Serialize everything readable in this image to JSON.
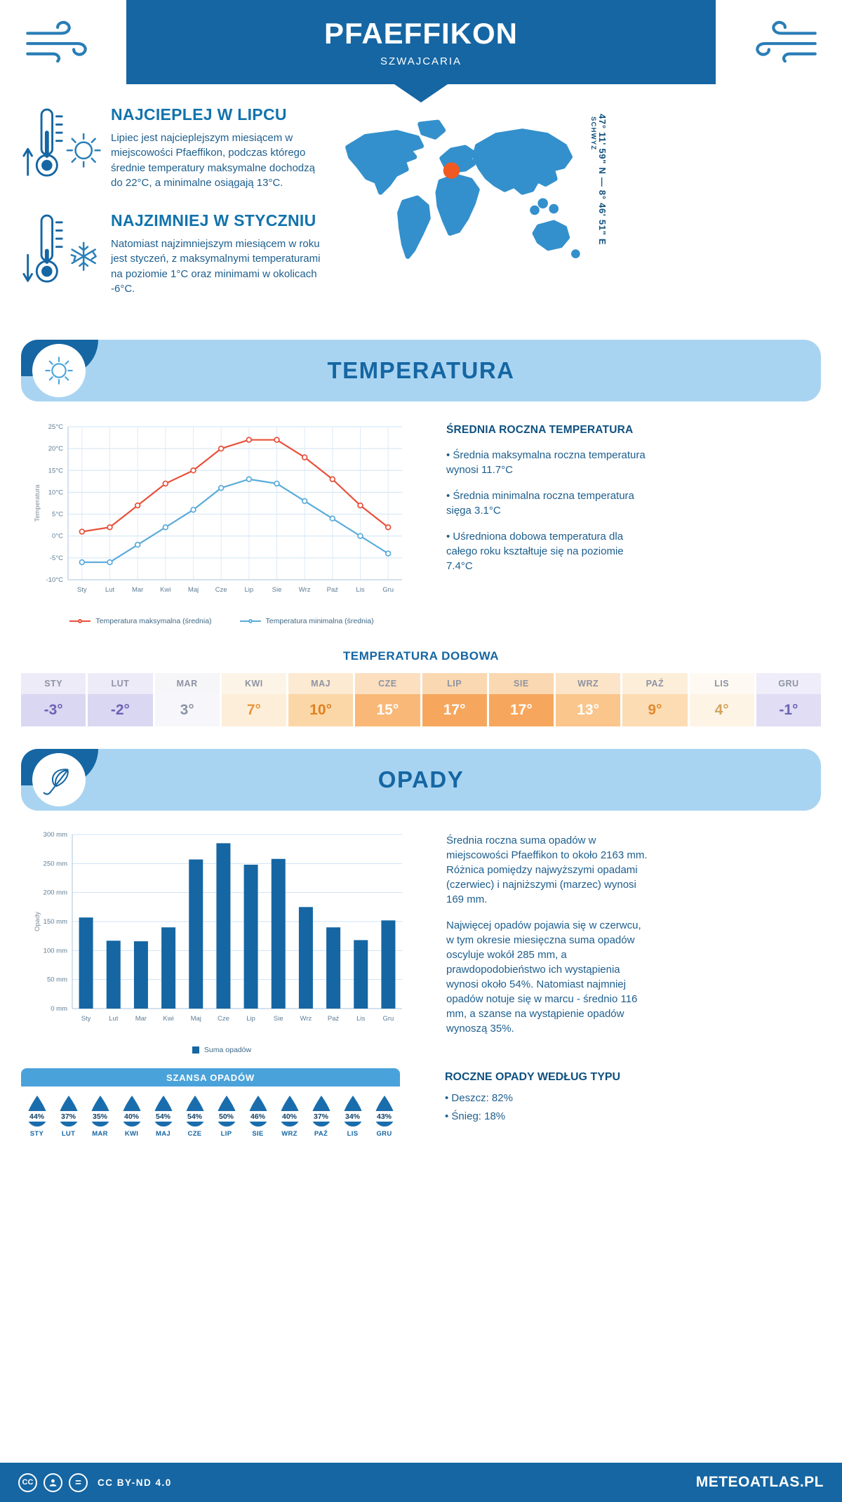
{
  "meta": {
    "title": "PFAEFFIKON",
    "subtitle": "SZWAJCARIA",
    "region": "SCHWYZ",
    "coordinates": "47° 11' 59\" N — 8° 46' 51\" E"
  },
  "intro": {
    "warm": {
      "title": "NAJCIEPLEJ W LIPCU",
      "text": "Lipiec jest najcieplejszym miesiącem w miejscowości Pfaeffikon, podczas którego średnie temperatury maksymalne dochodzą do 22°C, a minimalne osiągają 13°C."
    },
    "cold": {
      "title": "NAJZIMNIEJ W STYCZNIU",
      "text": "Natomiast najzimniejszym miesiącem w roku jest styczeń, z maksymalnymi temperaturami na poziomie 1°C oraz minimami w okolicach -6°C."
    }
  },
  "temperature": {
    "section_title": "TEMPERATURA",
    "summary_title": "ŚREDNIA ROCZNA TEMPERATURA",
    "bullets": [
      "Średnia maksymalna roczna temperatura wynosi 11.7°C",
      "Średnia minimalna roczna temperatura sięga 3.1°C",
      "Uśredniona dobowa temperatura dla całego roku kształtuje się na poziomie 7.4°C"
    ],
    "daily_title": "TEMPERATURA DOBOWA"
  },
  "chart_data": [
    {
      "type": "line",
      "title": "Średnie temperatury miesięczne",
      "ylabel": "Temperatura",
      "categories": [
        "Sty",
        "Lut",
        "Mar",
        "Kwi",
        "Maj",
        "Cze",
        "Lip",
        "Sie",
        "Wrz",
        "Paź",
        "Lis",
        "Gru"
      ],
      "ylim": [
        -10,
        25
      ],
      "ytick_step": 5,
      "ytick_suffix": "°C",
      "grid": true,
      "legend_position": "bottom",
      "series": [
        {
          "name": "Temperatura maksymalna (średnia)",
          "color": "#e8503a",
          "values": [
            1,
            2,
            7,
            12,
            15,
            20,
            22,
            22,
            18,
            13,
            7,
            2
          ]
        },
        {
          "name": "Temperatura minimalna (średnia)",
          "color": "#5aabdb",
          "values": [
            -6,
            -6,
            -2,
            2,
            6,
            11,
            13,
            12,
            8,
            4,
            0,
            -4
          ]
        }
      ]
    },
    {
      "type": "bar",
      "title": "Suma opadów miesięczna",
      "ylabel": "Opady",
      "categories": [
        "Sty",
        "Lut",
        "Mar",
        "Kwi",
        "Maj",
        "Cze",
        "Lip",
        "Sie",
        "Wrz",
        "Paź",
        "Lis",
        "Gru"
      ],
      "ylim": [
        0,
        300
      ],
      "ytick_step": 50,
      "ytick_suffix": " mm",
      "grid": true,
      "legend_position": "bottom",
      "series": [
        {
          "name": "Suma opadów",
          "color": "#1566a3",
          "values": [
            157,
            117,
            116,
            140,
            257,
            285,
            248,
            258,
            175,
            140,
            118,
            152
          ]
        }
      ]
    }
  ],
  "daily": {
    "months": [
      "STY",
      "LUT",
      "MAR",
      "KWI",
      "MAJ",
      "CZE",
      "LIP",
      "SIE",
      "WRZ",
      "PAŹ",
      "LIS",
      "GRU"
    ],
    "values": [
      "-3°",
      "-2°",
      "3°",
      "7°",
      "10°",
      "15°",
      "17°",
      "17°",
      "13°",
      "9°",
      "4°",
      "-1°"
    ],
    "head_bg": [
      "#edebf8",
      "#edebf8",
      "#f6f6f9",
      "#fdf4e8",
      "#fcead2",
      "#fbdfbf",
      "#fad8b1",
      "#fad8b1",
      "#fce4c8",
      "#fdeeda",
      "#fefaf3",
      "#efedf9"
    ],
    "cell_bg": [
      "#dad7f2",
      "#dad7f2",
      "#f7f7fb",
      "#fdeeda",
      "#fbd7a8",
      "#f9b877",
      "#f7a75d",
      "#f7a75d",
      "#fac68c",
      "#fcdcb2",
      "#fef4e6",
      "#e0ddf4"
    ],
    "cell_fg": [
      "#6a64b5",
      "#6a64b5",
      "#8c93a4",
      "#e8963d",
      "#e0801f",
      "#ffffff",
      "#ffffff",
      "#ffffff",
      "#ffffff",
      "#e28a31",
      "#d3a35f",
      "#6a64b5"
    ]
  },
  "precipitation": {
    "section_title": "OPADY",
    "para1": "Średnia roczna suma opadów w miejscowości Pfaeffikon to około 2163 mm. Różnica pomiędzy najwyższymi opadami (czerwiec) i najniższymi (marzec) wynosi 169 mm.",
    "para2": "Najwięcej opadów pojawia się w czerwcu, w tym okresie miesięczna suma opadów oscyluje wokół 285 mm, a prawdopodobieństwo ich wystąpienia wynosi około 54%. Natomiast najmniej opadów notuje się w marcu - średnio 116 mm, a szanse na wystąpienie opadów wynoszą 35%.",
    "chance_title": "SZANSA OPADÓW",
    "chance": [
      {
        "month": "STY",
        "value": "44%"
      },
      {
        "month": "LUT",
        "value": "37%"
      },
      {
        "month": "MAR",
        "value": "35%"
      },
      {
        "month": "KWI",
        "value": "40%"
      },
      {
        "month": "MAJ",
        "value": "54%"
      },
      {
        "month": "CZE",
        "value": "54%"
      },
      {
        "month": "LIP",
        "value": "50%"
      },
      {
        "month": "SIE",
        "value": "46%"
      },
      {
        "month": "WRZ",
        "value": "40%"
      },
      {
        "month": "PAŹ",
        "value": "37%"
      },
      {
        "month": "LIS",
        "value": "34%"
      },
      {
        "month": "GRU",
        "value": "43%"
      }
    ],
    "type_title": "ROCZNE OPADY WEDŁUG TYPU",
    "type_bullets": [
      "Deszcz: 82%",
      "Śnieg: 18%"
    ]
  },
  "footer": {
    "license": "CC BY-ND 4.0",
    "brand": "METEOATLAS.PL"
  },
  "colors": {
    "brand_blue": "#1566a3",
    "band_light_blue": "#a9d4f1",
    "chance_bar_blue": "#4aa2da",
    "max_line_red": "#e8503a",
    "min_line_blue": "#5aabdb",
    "map_blue": "#3390cc",
    "marker_orange": "#f05a22"
  }
}
